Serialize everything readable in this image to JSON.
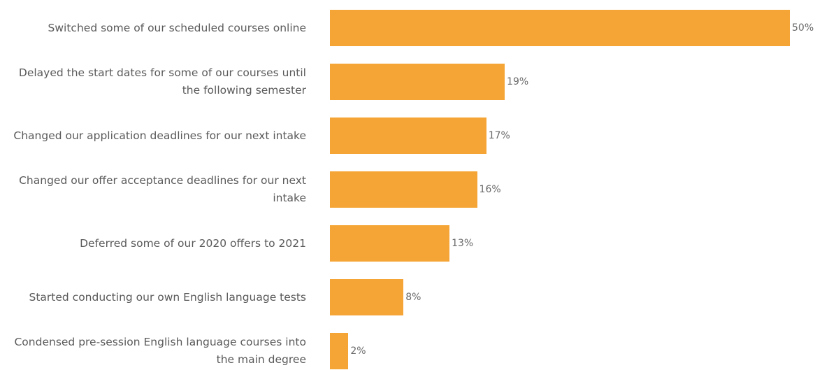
{
  "chart_data": {
    "type": "bar",
    "orientation": "horizontal",
    "categories": [
      "Switched some of our scheduled courses online",
      "Delayed the start dates for some of our courses until the following semester",
      "Changed our application deadlines for our next intake",
      "Changed our offer acceptance deadlines for our next intake",
      "Deferred some of our 2020 offers to 2021",
      "Started conducting our own English language tests",
      "Condensed pre-session English language courses into the main degree"
    ],
    "values": [
      50,
      19,
      17,
      16,
      13,
      8,
      2
    ],
    "value_labels": [
      "50%",
      "19%",
      "17%",
      "16%",
      "13%",
      "8%",
      "2%"
    ],
    "color": "#f5a535"
  }
}
